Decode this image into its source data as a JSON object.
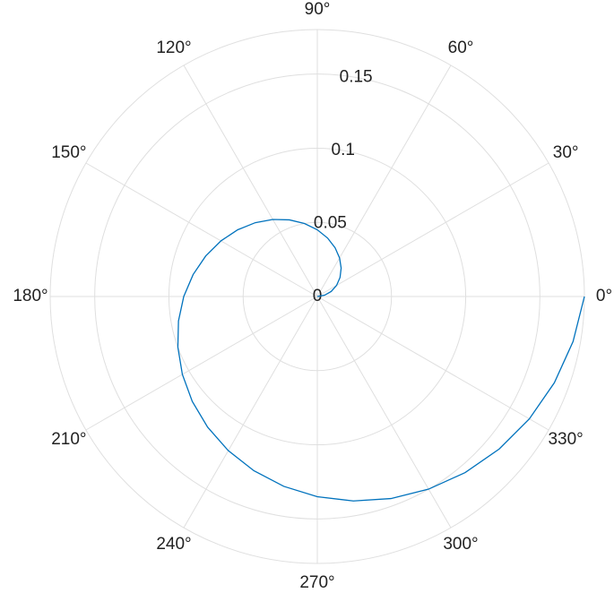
{
  "chart_data": {
    "type": "polar-line",
    "theta": [
      0,
      10,
      20,
      30,
      40,
      50,
      60,
      70,
      80,
      90,
      100,
      110,
      120,
      130,
      140,
      150,
      160,
      170,
      180,
      190,
      200,
      210,
      220,
      230,
      240,
      250,
      260,
      270,
      280,
      290,
      300,
      310,
      320,
      330,
      340,
      350,
      360
    ],
    "series": [
      {
        "color": "#0072bd",
        "values": [
          0,
          0.005,
          0.01,
          0.015,
          0.02,
          0.025,
          0.03,
          0.035,
          0.04,
          0.045,
          0.05,
          0.055,
          0.06,
          0.065,
          0.07,
          0.075,
          0.08,
          0.085,
          0.09,
          0.095,
          0.1,
          0.105,
          0.11,
          0.115,
          0.12,
          0.125,
          0.13,
          0.135,
          0.14,
          0.145,
          0.15,
          0.155,
          0.16,
          0.165,
          0.17,
          0.175,
          0.18
        ]
      }
    ],
    "rlim": [
      0,
      0.18
    ],
    "rticks": [
      0,
      0.05,
      0.1,
      0.15
    ],
    "thetaticks": [
      {
        "value": 0,
        "label": "0°"
      },
      {
        "value": 30,
        "label": "30°"
      },
      {
        "value": 60,
        "label": "60°"
      },
      {
        "value": 90,
        "label": "90°"
      },
      {
        "value": 120,
        "label": "120°"
      },
      {
        "value": 150,
        "label": "150°"
      },
      {
        "value": 180,
        "label": "180°"
      },
      {
        "value": 210,
        "label": "210°"
      },
      {
        "value": 240,
        "label": "240°"
      },
      {
        "value": 270,
        "label": "270°"
      },
      {
        "value": 300,
        "label": "300°"
      },
      {
        "value": 330,
        "label": "330°"
      }
    ],
    "grid": true
  }
}
